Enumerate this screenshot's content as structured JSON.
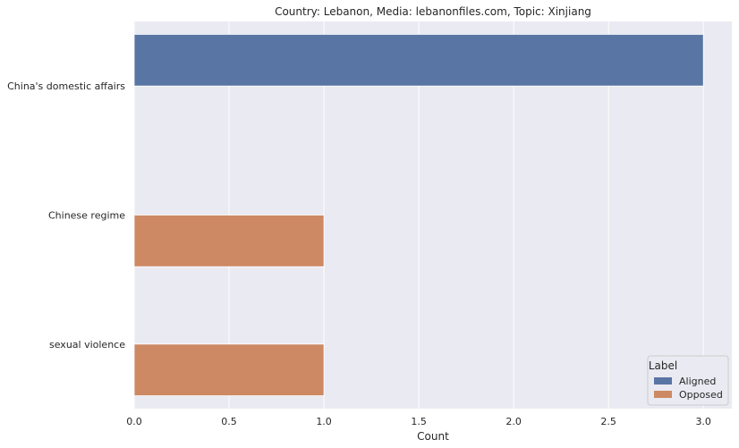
{
  "chart_data": {
    "type": "bar",
    "orientation": "horizontal",
    "title": "Country: Lebanon, Media: lebanonfiles.com, Topic: Xinjiang",
    "xlabel": "Count",
    "ylabel": "",
    "categories": [
      "China's domestic affairs",
      "Chinese regime",
      "sexual violence"
    ],
    "series": [
      {
        "name": "Aligned",
        "color": "#5975a4",
        "values": [
          3,
          0,
          0
        ]
      },
      {
        "name": "Opposed",
        "color": "#cc8963",
        "values": [
          0,
          1,
          1
        ]
      }
    ],
    "xlim": [
      0,
      3.15
    ],
    "xticks": [
      "0.0",
      "0.5",
      "1.0",
      "1.5",
      "2.0",
      "2.5",
      "3.0"
    ],
    "xtick_values": [
      0,
      0.5,
      1.0,
      1.5,
      2.0,
      2.5,
      3.0
    ],
    "grid": true,
    "background": "#eaeaf2",
    "legend": {
      "title": "Label",
      "placement": "lower-right"
    }
  }
}
